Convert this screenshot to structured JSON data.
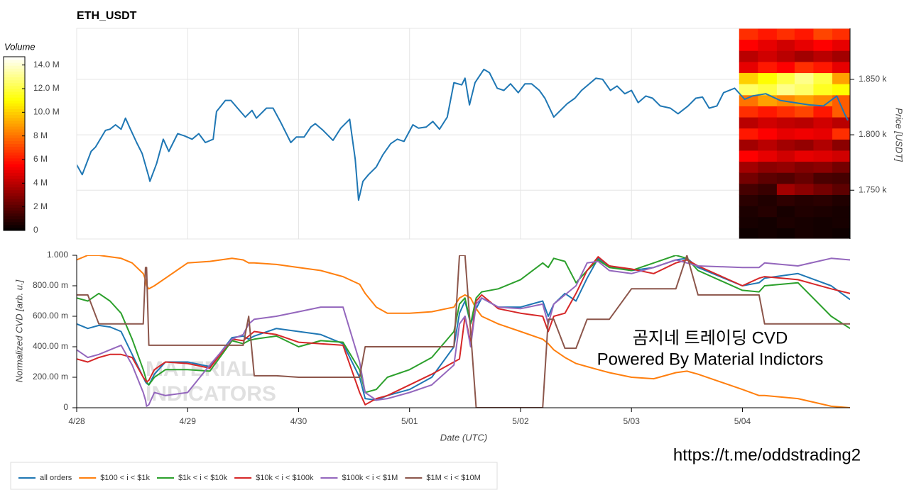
{
  "chart_data": [
    {
      "type": "line",
      "title": "ETH_USDT",
      "y_label": "Price [USDT]",
      "y_axis_side": "right",
      "grid": true,
      "xlim": [
        0,
        6.97
      ],
      "ylim": [
        1706,
        1896
      ],
      "yticks": [
        {
          "value": 1750,
          "label": "1.750 k"
        },
        {
          "value": 1800,
          "label": "1.800 k"
        },
        {
          "value": 1850,
          "label": "1.850 k"
        }
      ],
      "x": [
        0,
        0.05,
        0.13,
        0.17,
        0.26,
        0.3,
        0.35,
        0.4,
        0.44,
        0.48,
        0.54,
        0.59,
        0.65,
        0.66,
        0.72,
        0.78,
        0.83,
        0.91,
        0.97,
        1.04,
        1.1,
        1.16,
        1.23,
        1.26,
        1.34,
        1.39,
        1.45,
        1.52,
        1.58,
        1.62,
        1.71,
        1.77,
        1.84,
        1.93,
        1.98,
        2.05,
        2.11,
        2.15,
        2.22,
        2.31,
        2.38,
        2.46,
        2.51,
        2.54,
        2.58,
        2.63,
        2.7,
        2.76,
        2.83,
        2.89,
        2.95,
        3.03,
        3.08,
        3.15,
        3.21,
        3.27,
        3.34,
        3.4,
        3.47,
        3.5,
        3.54,
        3.59,
        3.67,
        3.72,
        3.79,
        3.85,
        3.91,
        3.98,
        4.04,
        4.1,
        4.17,
        4.22,
        4.3,
        4.36,
        4.42,
        4.49,
        4.55,
        4.62,
        4.68,
        4.74,
        4.81,
        4.87,
        4.94,
        5.0,
        5.06,
        5.13,
        5.19,
        5.26,
        5.35,
        5.42,
        5.51,
        5.58,
        5.64,
        5.7,
        5.77,
        5.83,
        5.93,
        6.02,
        6.09,
        6.21,
        6.34,
        6.47,
        6.6,
        6.73,
        6.85,
        6.92,
        6.95
      ],
      "series": [
        {
          "color": "#1f77b4",
          "values": [
            1773,
            1764,
            1785,
            1789,
            1804,
            1805,
            1809,
            1805,
            1815,
            1806,
            1793,
            1783,
            1762,
            1758,
            1774,
            1796,
            1785,
            1801,
            1799,
            1796,
            1801,
            1793,
            1796,
            1821,
            1831,
            1831,
            1824,
            1816,
            1822,
            1815,
            1824,
            1824,
            1811,
            1793,
            1798,
            1798,
            1807,
            1810,
            1804,
            1795,
            1806,
            1814,
            1778,
            1741,
            1758,
            1764,
            1771,
            1782,
            1792,
            1796,
            1794,
            1809,
            1806,
            1807,
            1812,
            1805,
            1816,
            1847,
            1845,
            1851,
            1827,
            1847,
            1859,
            1856,
            1842,
            1840,
            1846,
            1838,
            1846,
            1846,
            1840,
            1833,
            1816,
            1822,
            1828,
            1833,
            1840,
            1846,
            1851,
            1850,
            1840,
            1844,
            1837,
            1840,
            1829,
            1835,
            1833,
            1826,
            1824,
            1819,
            1826,
            1833,
            1834,
            1824,
            1826,
            1838,
            1842,
            1832,
            1835,
            1837,
            1831,
            1829,
            1827,
            1826,
            1835,
            1819,
            1813
          ]
        }
      ],
      "heatmap": {
        "colormap": "hot",
        "x_edges": [
          5.97,
          6.14,
          6.31,
          6.47,
          6.64,
          6.81,
          6.97
        ],
        "y_edges": [
          1706,
          1716,
          1726,
          1736,
          1746,
          1756,
          1766,
          1776,
          1786,
          1796,
          1806,
          1816,
          1826,
          1836,
          1846,
          1856,
          1866,
          1876,
          1886,
          1896
        ],
        "values": [
          [
            0.3,
            0.4,
            0.3,
            0.5,
            0.4,
            0.3
          ],
          [
            0.5,
            0.4,
            0.6,
            0.5,
            0.4,
            0.5
          ],
          [
            0.6,
            0.8,
            0.5,
            0.7,
            0.6,
            0.5
          ],
          [
            0.9,
            0.7,
            1.0,
            0.8,
            0.9,
            0.7
          ],
          [
            1.5,
            1.2,
            3.5,
            3.0,
            2.5,
            2.0
          ],
          [
            2.5,
            2.0,
            1.8,
            2.2,
            1.6,
            1.5
          ],
          [
            3.5,
            3.0,
            3.2,
            2.8,
            3.0,
            2.5
          ],
          [
            5.5,
            5.0,
            4.5,
            5.0,
            4.8,
            4.5
          ],
          [
            3.5,
            4.0,
            3.5,
            3.2,
            3.8,
            3.0
          ],
          [
            6.0,
            5.5,
            5.0,
            5.2,
            5.0,
            6.5
          ],
          [
            4.0,
            4.5,
            4.2,
            4.0,
            4.5,
            4.0
          ],
          [
            6.5,
            6.0,
            6.5,
            7.0,
            6.0,
            7.5
          ],
          [
            8.0,
            9.0,
            8.5,
            9.0,
            8.5,
            7.5
          ],
          [
            12.5,
            12.0,
            13.0,
            12.5,
            11.5,
            11.0
          ],
          [
            10.0,
            11.0,
            12.0,
            13.0,
            12.0,
            9.0
          ],
          [
            5.0,
            6.0,
            5.5,
            6.5,
            6.0,
            5.0
          ],
          [
            4.0,
            4.5,
            4.0,
            3.5,
            4.0,
            3.5
          ],
          [
            5.5,
            5.0,
            4.5,
            5.0,
            5.5,
            5.0
          ],
          [
            6.5,
            6.0,
            6.5,
            6.0,
            7.0,
            6.5
          ]
        ]
      },
      "colorbar": {
        "title": "Volume",
        "lim": [
          0,
          14.7
        ],
        "ticks": [
          0,
          {
            "value": 2,
            "label": "2 M"
          },
          {
            "value": 4,
            "label": "4 M"
          },
          {
            "value": 6,
            "label": "6 M"
          },
          {
            "value": 8,
            "label": "8 M"
          },
          {
            "value": 10,
            "label": "10.0 M"
          },
          {
            "value": 12,
            "label": "12.0 M"
          },
          {
            "value": 14,
            "label": "14.0 M"
          }
        ]
      }
    },
    {
      "type": "line",
      "x_label": "Date (UTC)",
      "y_label": "Normalized CVD [arb. u.]",
      "y_axis_side": "left",
      "grid": false,
      "xlim": [
        0,
        6.97
      ],
      "ylim": [
        0,
        1
      ],
      "xticks": [
        {
          "value": 0,
          "label": "4/28"
        },
        {
          "value": 1,
          "label": "4/29"
        },
        {
          "value": 2,
          "label": "4/30"
        },
        {
          "value": 3,
          "label": "5/01"
        },
        {
          "value": 4,
          "label": "5/02"
        },
        {
          "value": 5,
          "label": "5/03"
        },
        {
          "value": 6,
          "label": "5/04"
        }
      ],
      "yticks": [
        0,
        {
          "value": 0.2,
          "label": "200.00 m"
        },
        {
          "value": 0.4,
          "label": "400.00 m"
        },
        {
          "value": 0.6,
          "label": "600.00 m"
        },
        {
          "value": 0.8,
          "label": "800.00 m"
        },
        {
          "value": 1,
          "label": "1.000"
        }
      ],
      "x": [
        0,
        0.1,
        0.2,
        0.3,
        0.4,
        0.5,
        0.6,
        0.62,
        0.63,
        0.65,
        0.7,
        0.8,
        1.0,
        1.2,
        1.4,
        1.5,
        1.55,
        1.6,
        1.8,
        2.0,
        2.2,
        2.4,
        2.55,
        2.6,
        2.7,
        2.8,
        3.0,
        3.2,
        3.4,
        3.45,
        3.5,
        3.55,
        3.6,
        3.65,
        3.8,
        4.0,
        4.2,
        4.25,
        4.3,
        4.4,
        4.5,
        4.6,
        4.7,
        4.8,
        5.0,
        5.2,
        5.4,
        5.5,
        5.6,
        6.0,
        6.15,
        6.2,
        6.5,
        6.8,
        6.97
      ],
      "series": [
        {
          "name": "all orders",
          "color": "#1f77b4",
          "values": [
            0.55,
            0.52,
            0.54,
            0.53,
            0.5,
            0.35,
            0.2,
            0.17,
            0.16,
            0.15,
            0.22,
            0.3,
            0.3,
            0.27,
            0.46,
            0.47,
            0.45,
            0.47,
            0.52,
            0.5,
            0.48,
            0.42,
            0.2,
            0.06,
            0.05,
            0.08,
            0.12,
            0.2,
            0.4,
            0.62,
            0.7,
            0.55,
            0.65,
            0.72,
            0.66,
            0.66,
            0.7,
            0.6,
            0.68,
            0.75,
            0.7,
            0.85,
            0.98,
            0.93,
            0.9,
            0.92,
            0.97,
            0.98,
            0.92,
            0.8,
            0.82,
            0.85,
            0.88,
            0.8,
            0.71
          ]
        },
        {
          "name": "$100 < i < $1k",
          "color": "#ff7f0e",
          "values": [
            0.97,
            1.0,
            1.0,
            0.99,
            0.98,
            0.95,
            0.88,
            0.84,
            0.8,
            0.78,
            0.8,
            0.85,
            0.95,
            0.96,
            0.98,
            0.97,
            0.95,
            0.95,
            0.94,
            0.92,
            0.9,
            0.86,
            0.81,
            0.75,
            0.66,
            0.62,
            0.62,
            0.63,
            0.66,
            0.72,
            0.74,
            0.72,
            0.65,
            0.6,
            0.55,
            0.5,
            0.45,
            0.42,
            0.38,
            0.33,
            0.29,
            0.27,
            0.25,
            0.23,
            0.2,
            0.19,
            0.23,
            0.24,
            0.22,
            0.12,
            0.08,
            0.08,
            0.06,
            0.01,
            0
          ]
        },
        {
          "name": "$1k < i < $10k",
          "color": "#2ca02c",
          "values": [
            0.72,
            0.7,
            0.75,
            0.7,
            0.62,
            0.45,
            0.25,
            0.2,
            0.17,
            0.15,
            0.2,
            0.25,
            0.25,
            0.24,
            0.44,
            0.42,
            0.44,
            0.45,
            0.47,
            0.4,
            0.44,
            0.43,
            0.25,
            0.1,
            0.12,
            0.2,
            0.25,
            0.33,
            0.5,
            0.68,
            0.72,
            0.55,
            0.72,
            0.76,
            0.78,
            0.84,
            0.95,
            0.92,
            0.98,
            0.96,
            0.82,
            0.9,
            0.97,
            0.92,
            0.9,
            0.95,
            1.0,
            0.98,
            0.9,
            0.77,
            0.76,
            0.8,
            0.82,
            0.6,
            0.52
          ]
        },
        {
          "name": "$10k < i < $100k",
          "color": "#d62728",
          "values": [
            0.32,
            0.3,
            0.33,
            0.35,
            0.35,
            0.33,
            0.2,
            0.18,
            0.17,
            0.18,
            0.25,
            0.3,
            0.29,
            0.26,
            0.45,
            0.44,
            0.47,
            0.5,
            0.48,
            0.43,
            0.42,
            0.41,
            0.1,
            0.02,
            0.06,
            0.08,
            0.15,
            0.22,
            0.3,
            0.32,
            0.6,
            0.43,
            0.7,
            0.74,
            0.65,
            0.62,
            0.6,
            0.5,
            0.6,
            0.62,
            0.75,
            0.9,
            0.99,
            0.93,
            0.91,
            0.88,
            0.95,
            0.97,
            0.93,
            0.8,
            0.85,
            0.86,
            0.84,
            0.78,
            0.75
          ]
        },
        {
          "name": "$100k < i < $1M",
          "color": "#9467bd",
          "values": [
            0.38,
            0.33,
            0.35,
            0.38,
            0.41,
            0.28,
            0.1,
            0.05,
            0.01,
            0.02,
            0.1,
            0.08,
            0.1,
            0.28,
            0.45,
            0.48,
            0.55,
            0.58,
            0.6,
            0.63,
            0.66,
            0.66,
            0.3,
            0.1,
            0.05,
            0.06,
            0.1,
            0.15,
            0.28,
            0.55,
            0.6,
            0.4,
            0.68,
            0.72,
            0.66,
            0.65,
            0.68,
            0.55,
            0.68,
            0.74,
            0.8,
            0.95,
            0.96,
            0.9,
            0.88,
            0.92,
            0.97,
            0.95,
            0.93,
            0.92,
            0.92,
            0.95,
            0.93,
            0.98,
            0.97
          ]
        },
        {
          "name": "$1M < i < $10M",
          "color": "#8c564b",
          "values": [
            0.74,
            0.74,
            0.55,
            0.55,
            0.55,
            0.55,
            0.55,
            0.92,
            0.92,
            0.41,
            0.41,
            0.41,
            0.41,
            0.41,
            0.41,
            0.41,
            0.6,
            0.21,
            0.21,
            0.2,
            0.2,
            0.2,
            0.2,
            0.4,
            0.4,
            0.4,
            0.4,
            0.4,
            0.4,
            1.0,
            1.0,
            0.5,
            0,
            0,
            0,
            0,
            0,
            0.58,
            0.58,
            0.39,
            0.39,
            0.58,
            0.58,
            0.58,
            0.78,
            0.78,
            0.78,
            1.0,
            0.74,
            0.74,
            0.74,
            0.55,
            0.55,
            0.55,
            0.55
          ]
        }
      ],
      "annotation": [
        "곰지네 트레이딩 CVD",
        "Powered By Material Indictors"
      ],
      "watermark": [
        "MATERIAL",
        "INDICATORS"
      ]
    }
  ],
  "footer_link": "https://t.me/oddstrading2"
}
